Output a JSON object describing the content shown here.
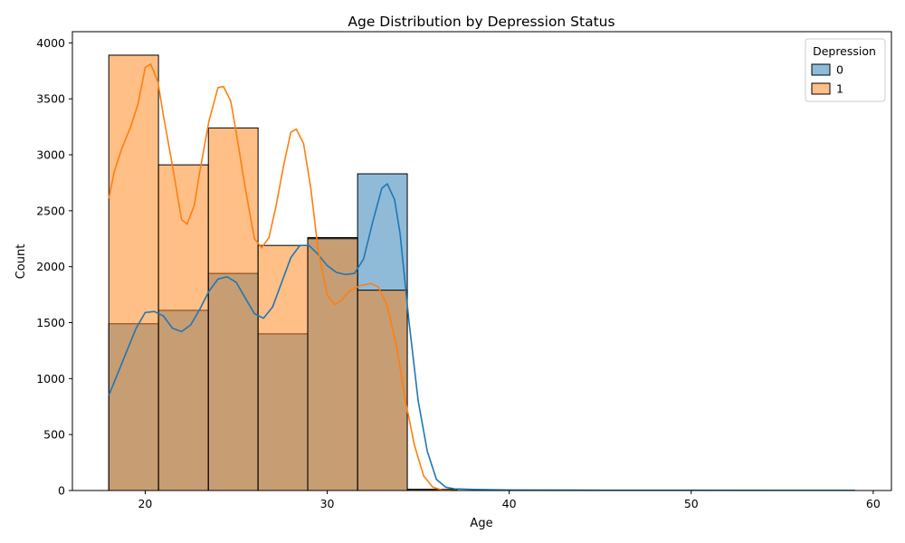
{
  "chart_data": {
    "type": "histogram",
    "title": "Age Distribution by Depression Status",
    "xlabel": "Age",
    "ylabel": "Count",
    "xlim": [
      16,
      61
    ],
    "ylim": [
      0,
      4100
    ],
    "xticks": [
      20,
      30,
      40,
      50,
      60
    ],
    "yticks": [
      0,
      500,
      1000,
      1500,
      2000,
      2500,
      3000,
      3500,
      4000
    ],
    "bin_edges": [
      18,
      20.73,
      23.47,
      26.2,
      28.93,
      31.67,
      34.4,
      37.13,
      39.87,
      42.6,
      45.33,
      48.07,
      50.8,
      53.53,
      56.27,
      59
    ],
    "legend": {
      "title": "Depression",
      "position": "top-right"
    },
    "series": [
      {
        "name": "0",
        "color": "#1f77b4",
        "counts": [
          1490,
          1610,
          1940,
          1400,
          2260,
          2830,
          10,
          0,
          0,
          0,
          0,
          0,
          0,
          0,
          0
        ],
        "kde": [
          [
            18,
            850
          ],
          [
            18.5,
            1050
          ],
          [
            19,
            1250
          ],
          [
            19.5,
            1450
          ],
          [
            20,
            1590
          ],
          [
            20.5,
            1600
          ],
          [
            21,
            1560
          ],
          [
            21.5,
            1450
          ],
          [
            22,
            1420
          ],
          [
            22.5,
            1480
          ],
          [
            23,
            1620
          ],
          [
            23.5,
            1780
          ],
          [
            24,
            1890
          ],
          [
            24.5,
            1910
          ],
          [
            25,
            1860
          ],
          [
            25.5,
            1720
          ],
          [
            26,
            1580
          ],
          [
            26.5,
            1540
          ],
          [
            27,
            1640
          ],
          [
            27.5,
            1860
          ],
          [
            28,
            2080
          ],
          [
            28.5,
            2190
          ],
          [
            29,
            2190
          ],
          [
            29.5,
            2110
          ],
          [
            30,
            2010
          ],
          [
            30.5,
            1950
          ],
          [
            31,
            1930
          ],
          [
            31.5,
            1940
          ],
          [
            32,
            2070
          ],
          [
            32.5,
            2400
          ],
          [
            33,
            2700
          ],
          [
            33.3,
            2740
          ],
          [
            33.7,
            2600
          ],
          [
            34,
            2300
          ],
          [
            34.5,
            1500
          ],
          [
            35,
            800
          ],
          [
            35.5,
            350
          ],
          [
            36,
            100
          ],
          [
            36.5,
            30
          ],
          [
            37,
            15
          ],
          [
            38,
            10
          ],
          [
            40,
            5
          ],
          [
            45,
            3
          ],
          [
            50,
            3
          ],
          [
            55,
            2
          ],
          [
            59,
            2
          ]
        ]
      },
      {
        "name": "1",
        "color": "#ff7f0e",
        "counts": [
          3890,
          2910,
          3240,
          2190,
          2250,
          1790,
          10,
          0,
          0,
          0,
          0,
          0,
          0,
          0,
          0
        ],
        "kde": [
          [
            18,
            2610
          ],
          [
            18.3,
            2850
          ],
          [
            18.7,
            3050
          ],
          [
            19.2,
            3250
          ],
          [
            19.6,
            3450
          ],
          [
            20,
            3780
          ],
          [
            20.3,
            3810
          ],
          [
            20.7,
            3650
          ],
          [
            21,
            3350
          ],
          [
            21.5,
            2900
          ],
          [
            22,
            2420
          ],
          [
            22.3,
            2380
          ],
          [
            22.7,
            2550
          ],
          [
            23,
            2850
          ],
          [
            23.5,
            3300
          ],
          [
            24,
            3600
          ],
          [
            24.3,
            3610
          ],
          [
            24.7,
            3480
          ],
          [
            25,
            3200
          ],
          [
            25.5,
            2700
          ],
          [
            26,
            2250
          ],
          [
            26.4,
            2170
          ],
          [
            26.8,
            2260
          ],
          [
            27.2,
            2550
          ],
          [
            27.6,
            2900
          ],
          [
            28,
            3200
          ],
          [
            28.3,
            3230
          ],
          [
            28.7,
            3100
          ],
          [
            29.1,
            2700
          ],
          [
            29.5,
            2150
          ],
          [
            30,
            1750
          ],
          [
            30.4,
            1660
          ],
          [
            30.8,
            1700
          ],
          [
            31.2,
            1780
          ],
          [
            31.8,
            1830
          ],
          [
            32.4,
            1850
          ],
          [
            32.8,
            1820
          ],
          [
            33.3,
            1650
          ],
          [
            33.8,
            1300
          ],
          [
            34.3,
            800
          ],
          [
            34.8,
            400
          ],
          [
            35.3,
            130
          ],
          [
            35.8,
            30
          ],
          [
            36.3,
            5
          ],
          [
            37,
            0
          ]
        ]
      }
    ]
  }
}
